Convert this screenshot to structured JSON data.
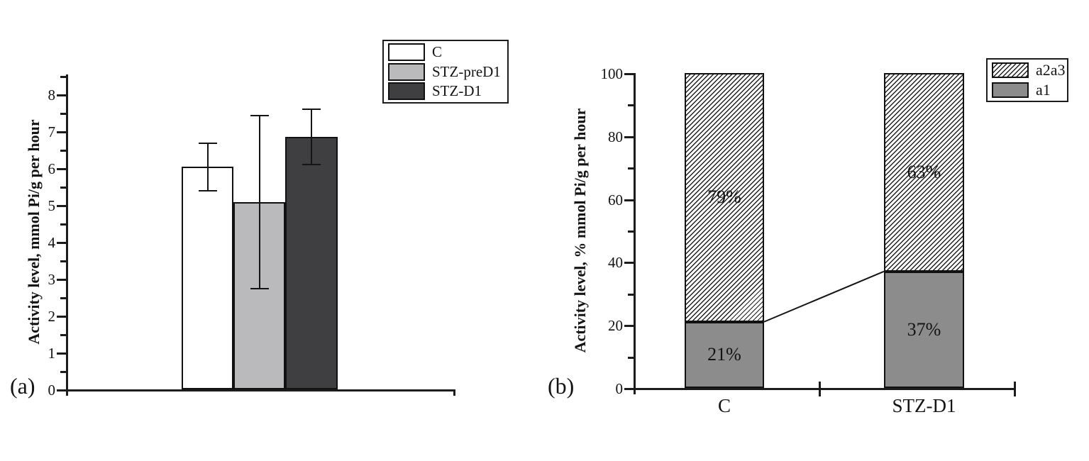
{
  "panels": [
    {
      "tag": "(a)"
    },
    {
      "tag": "(b)"
    }
  ],
  "chart_data": [
    {
      "type": "bar",
      "panel": "a",
      "title": "",
      "xlabel": "",
      "ylabel": "Activity level, mmol Pi/g per hour",
      "categories": [
        "C",
        "STZ-preD1",
        "STZ-D1"
      ],
      "values": [
        6.03,
        5.08,
        6.85
      ],
      "error_plus": [
        0.65,
        2.35,
        0.75
      ],
      "error_minus": [
        0.65,
        2.35,
        0.75
      ],
      "ylim": [
        0,
        8.55
      ],
      "yticks": [
        0,
        1,
        2,
        3,
        4,
        5,
        6,
        7,
        8
      ],
      "minor_tick_step": 0.5,
      "grid": "off",
      "bar_colors": [
        "#ffffff",
        "#bababc",
        "#3f3f42"
      ],
      "legend": [
        "C",
        "STZ-preD1",
        "STZ-D1"
      ],
      "legend_position": "outside-top-right"
    },
    {
      "type": "stacked-bar",
      "panel": "b",
      "title": "",
      "xlabel": "",
      "ylabel": "Activity level, % mmol Pi/g per hour",
      "categories": [
        "C",
        "STZ-D1"
      ],
      "series": [
        {
          "name": "a1",
          "values": [
            21,
            37
          ],
          "labels": [
            "21%",
            "37%"
          ],
          "fill": "#8c8c8c"
        },
        {
          "name": "a2a3",
          "values": [
            79,
            63
          ],
          "labels": [
            "79%",
            "63%"
          ],
          "fill": "diagonal-hatch"
        }
      ],
      "ylim": [
        0,
        100
      ],
      "yticks": [
        0,
        20,
        40,
        60,
        80,
        100
      ],
      "minor_tick_step": 10,
      "grid": "off",
      "legend": [
        "a2a3",
        "a1"
      ],
      "legend_position": "outside-top-right",
      "connector_line": {
        "from_pct": 21,
        "to_pct": 37
      }
    }
  ]
}
